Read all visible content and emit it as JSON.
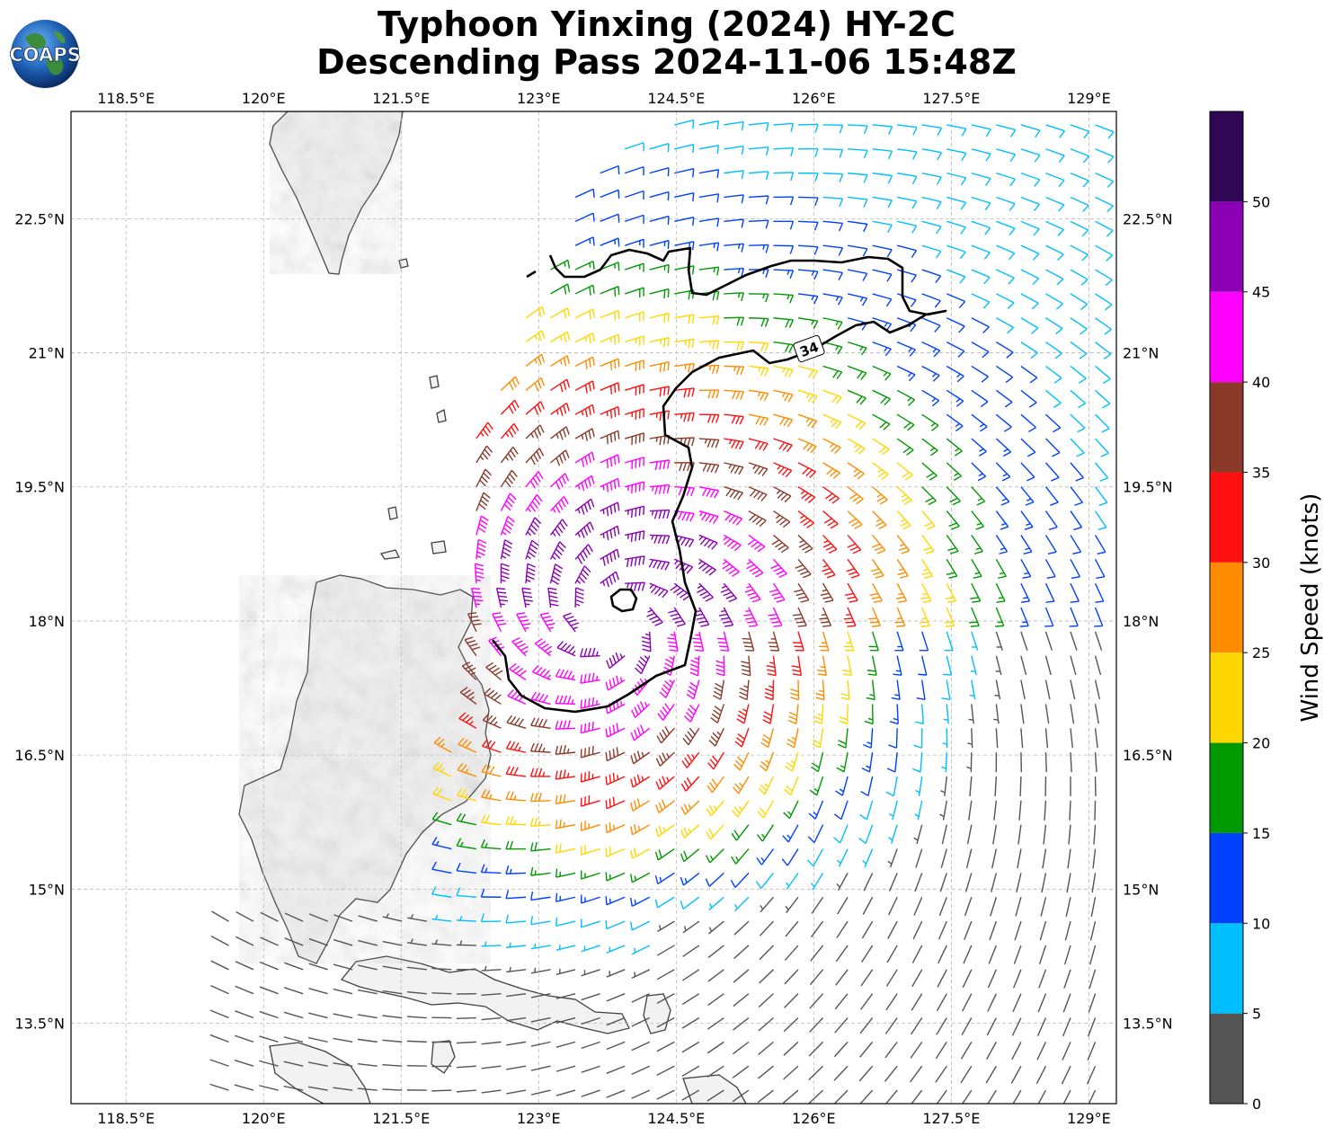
{
  "title": {
    "line1": "Typhoon Yinxing (2024) HY-2C",
    "line2": "Descending Pass 2024-11-06 15:48Z"
  },
  "logo": {
    "text": "COAPS"
  },
  "map": {
    "lon_range": [
      117.9,
      129.3
    ],
    "lat_range": [
      12.6,
      23.7
    ],
    "lon_ticks": [
      "118.5°E",
      "120°E",
      "121.5°E",
      "123°E",
      "124.5°E",
      "126°E",
      "127.5°E",
      "129°E"
    ],
    "lon_tick_values": [
      118.5,
      120,
      121.5,
      123,
      124.5,
      126,
      127.5,
      129
    ],
    "lat_ticks": [
      "13.5°N",
      "15°N",
      "16.5°N",
      "18°N",
      "19.5°N",
      "21°N",
      "22.5°N"
    ],
    "lat_tick_values": [
      13.5,
      15,
      16.5,
      18,
      19.5,
      21,
      22.5
    ],
    "grid": "dashed",
    "storm_center": [
      123.8,
      18.0
    ],
    "contour_label": "34"
  },
  "colorbar": {
    "title": "Wind Speed (knots)",
    "ticks": [
      "0",
      "5",
      "10",
      "15",
      "20",
      "25",
      "30",
      "35",
      "40",
      "45",
      "50"
    ],
    "colors": [
      "#555555",
      "#00bfff",
      "#0040ff",
      "#009900",
      "#ffd700",
      "#ff8c00",
      "#ff1010",
      "#8b3a2a",
      "#ff00ff",
      "#8b00b5",
      "#2e0854"
    ]
  }
}
